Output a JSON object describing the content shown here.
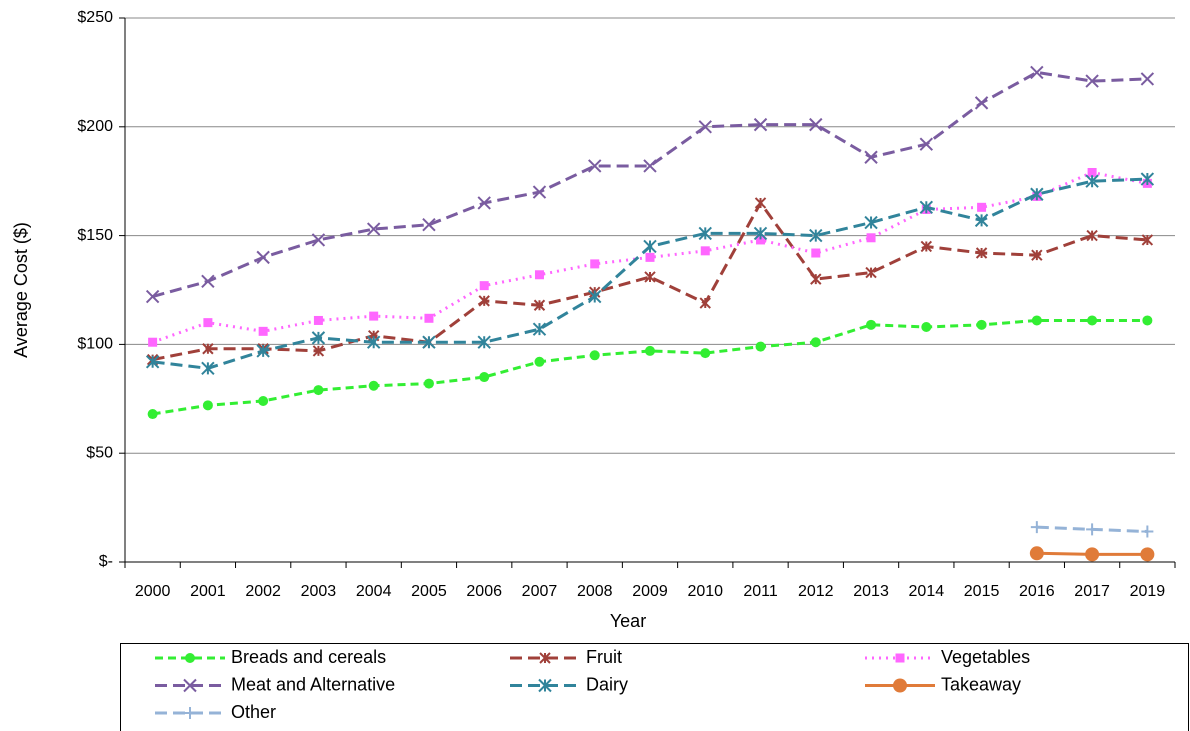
{
  "chart_data": {
    "type": "line",
    "xlabel": "Year",
    "ylabel": "Average Cost ($)",
    "categories": [
      "2000",
      "2001",
      "2002",
      "2003",
      "2004",
      "2005",
      "2006",
      "2007",
      "2008",
      "2009",
      "2010",
      "2011",
      "2012",
      "2013",
      "2014",
      "2015",
      "2016",
      "2017",
      "2019"
    ],
    "ylim": [
      0,
      250
    ],
    "yticks": [
      {
        "value": 0,
        "label": "$-"
      },
      {
        "value": 50,
        "label": "$50"
      },
      {
        "value": 100,
        "label": "$100"
      },
      {
        "value": 150,
        "label": "$150"
      },
      {
        "value": 200,
        "label": "$200"
      },
      {
        "value": 250,
        "label": "$250"
      }
    ],
    "grid": true,
    "series": [
      {
        "name": "Breads and cereals",
        "color": "#33ee33",
        "values": [
          68,
          72,
          74,
          79,
          81,
          82,
          85,
          92,
          95,
          97,
          96,
          99,
          101,
          109,
          108,
          109,
          111,
          111,
          111
        ]
      },
      {
        "name": "Fruit",
        "color": "#a0403a",
        "values": [
          93,
          98,
          98,
          97,
          104,
          101,
          120,
          118,
          124,
          131,
          119,
          165,
          130,
          133,
          145,
          142,
          141,
          150,
          148
        ]
      },
      {
        "name": "Vegetables",
        "color": "#ff66ff",
        "values": [
          101,
          110,
          106,
          111,
          113,
          112,
          127,
          132,
          137,
          140,
          143,
          148,
          142,
          149,
          162,
          163,
          168,
          179,
          174
        ]
      },
      {
        "name": "Meat and Alternative",
        "color": "#7a5ca0",
        "values": [
          122,
          129,
          140,
          148,
          153,
          155,
          165,
          170,
          182,
          182,
          200,
          201,
          201,
          186,
          192,
          211,
          225,
          221,
          222
        ]
      },
      {
        "name": "Dairy",
        "color": "#31849b",
        "values": [
          92,
          89,
          97,
          103,
          101,
          101,
          101,
          107,
          122,
          145,
          151,
          151,
          150,
          156,
          163,
          157,
          169,
          175,
          176
        ]
      },
      {
        "name": "Takeaway",
        "color": "#e07b39",
        "values": [
          null,
          null,
          null,
          null,
          null,
          null,
          null,
          null,
          null,
          null,
          null,
          null,
          null,
          null,
          null,
          null,
          4,
          3.5,
          3.5
        ]
      },
      {
        "name": "Other",
        "color": "#95b3d7",
        "values": [
          null,
          null,
          null,
          null,
          null,
          null,
          null,
          null,
          null,
          null,
          null,
          null,
          null,
          null,
          null,
          null,
          16,
          15,
          14
        ]
      }
    ]
  }
}
